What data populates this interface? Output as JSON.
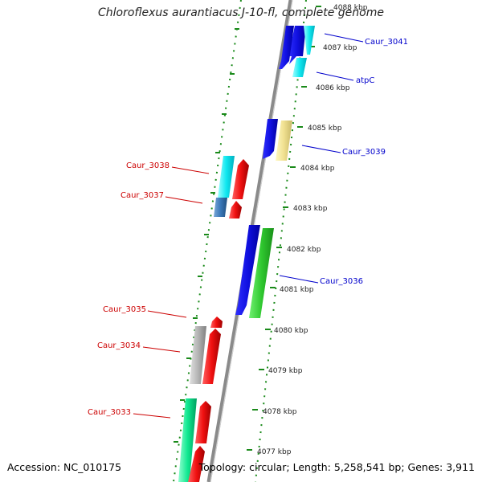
{
  "title": "Chloroflexus aurantiacus J-10-fl, complete genome",
  "footer": {
    "accession": "Accession: NC_010175",
    "summary": "Topology: circular; Length: 5,258,541 bp; Genes: 3,911"
  },
  "colors": {
    "backbone": "#8a8a8a",
    "tick_dots": "#1a8a1a",
    "forward_label": "#0000cc",
    "reverse_label": "#cc0000"
  },
  "scale_ticks": [
    "4088 kbp",
    "4087 kbp",
    "4086 kbp",
    "4085 kbp",
    "4084 kbp",
    "4083 kbp",
    "4082 kbp",
    "4081 kbp",
    "4080 kbp",
    "4079 kbp",
    "4078 kbp",
    "4077 kbp"
  ],
  "forward_labels": [
    "Caur_3041",
    "atpC",
    "Caur_3039",
    "Caur_3036"
  ],
  "reverse_labels": [
    "Caur_3038",
    "Caur_3037",
    "Caur_3035",
    "Caur_3034",
    "Caur_3033"
  ],
  "gene_colors": {
    "blue": "#1010e0",
    "cyan": "#10e8f0",
    "khaki": "#f0e090",
    "green": "#30c830",
    "red": "#f01010",
    "steelblue": "#3a78b8",
    "gray": "#b4b4b4",
    "seagreen": "#10e890"
  }
}
